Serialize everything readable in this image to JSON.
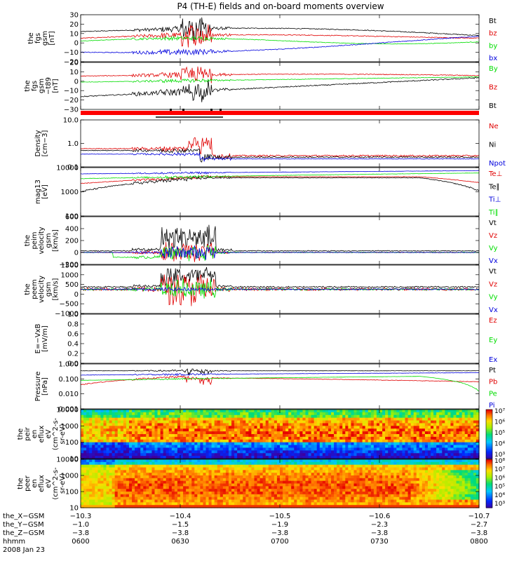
{
  "title": "P4 (TH-E) fields and on-board moments overview",
  "colors": {
    "black": "#000000",
    "red": "#e00000",
    "green": "#00dd00",
    "blue": "#0000dd",
    "bar_red": "#ff0000"
  },
  "chart_data": [
    {
      "type": "line",
      "name": "fgs-gsm",
      "ylabel": [
        "the",
        "fgs",
        "gsm",
        "[nT]"
      ],
      "ylim": [
        -20,
        30
      ],
      "yticks": [
        "30",
        "20",
        "10",
        "0",
        "−10",
        "−20"
      ],
      "legend": [
        {
          "label": "Bt",
          "color": "#000000"
        },
        {
          "label": "bz",
          "color": "#e00000"
        },
        {
          "label": "by",
          "color": "#00dd00"
        },
        {
          "label": "bx",
          "color": "#0000dd"
        }
      ]
    },
    {
      "type": "line",
      "name": "fgs-gsm-diff",
      "ylabel": [
        "the",
        "fgs",
        "gsm",
        "−t89",
        "[nT]"
      ],
      "ylim": [
        -35,
        20
      ],
      "yticks": [
        "20",
        "10",
        "0",
        "−10",
        "−20",
        "−30"
      ],
      "legend": [
        {
          "label": "By",
          "color": "#00dd00"
        },
        {
          "label": "Bz",
          "color": "#e00000"
        },
        {
          "label": "Bt",
          "color": "#000000"
        }
      ]
    },
    {
      "type": "line",
      "name": "density",
      "ylabel": [
        "Density",
        "[cm−3]"
      ],
      "ylim": [
        0.1,
        10
      ],
      "log": true,
      "yticks": [
        "10.0",
        "1.0",
        "0.1"
      ],
      "legend": [
        {
          "label": "Ne",
          "color": "#e00000"
        },
        {
          "label": "Ni",
          "color": "#000000"
        },
        {
          "label": "Npot",
          "color": "#0000dd"
        }
      ]
    },
    {
      "type": "line",
      "name": "temperature",
      "ylabel": [
        "mag13",
        "[eV]"
      ],
      "ylim": [
        100,
        10000
      ],
      "log": true,
      "yticks": [
        "10000",
        "1000",
        "100"
      ],
      "legend": [
        {
          "label": "Te⊥",
          "color": "#e00000"
        },
        {
          "label": "Te∥",
          "color": "#000000"
        },
        {
          "label": "Ti⊥",
          "color": "#0000dd"
        },
        {
          "label": "Ti∥",
          "color": "#00dd00"
        }
      ]
    },
    {
      "type": "line",
      "name": "peim-velocity",
      "ylabel": [
        "the",
        "peim",
        "velocity",
        "gsm",
        "[km/s]"
      ],
      "ylim": [
        -200,
        600
      ],
      "yticks": [
        "600",
        "400",
        "200",
        "0",
        "−200"
      ],
      "legend": [
        {
          "label": "Vt",
          "color": "#000000"
        },
        {
          "label": "Vz",
          "color": "#e00000"
        },
        {
          "label": "Vy",
          "color": "#00dd00"
        },
        {
          "label": "Vx",
          "color": "#0000dd"
        }
      ]
    },
    {
      "type": "line",
      "name": "peem-velocity",
      "ylabel": [
        "the",
        "peem",
        "velocity",
        "gsm",
        "[km/s]"
      ],
      "ylim": [
        -1500,
        1500
      ],
      "yticks": [
        "1500",
        "1000",
        "500",
        "0",
        "−500",
        "−1000"
      ],
      "legend": [
        {
          "label": "Vt",
          "color": "#000000"
        },
        {
          "label": "Vz",
          "color": "#e00000"
        },
        {
          "label": "Vy",
          "color": "#00dd00"
        },
        {
          "label": "Vx",
          "color": "#0000dd"
        }
      ]
    },
    {
      "type": "line",
      "name": "efield",
      "ylabel": [
        "E=−VxB",
        "[mV/m]"
      ],
      "ylim": [
        0,
        1
      ],
      "yticks": [
        "1.0",
        "0.8",
        "0.6",
        "0.4",
        "0.2",
        "0.0"
      ],
      "legend": [
        {
          "label": "Ez",
          "color": "#e00000"
        },
        {
          "label": "Ey",
          "color": "#00dd00"
        },
        {
          "label": "Ex",
          "color": "#0000dd"
        }
      ]
    },
    {
      "type": "line",
      "name": "pressure",
      "ylabel": [
        "Pressure",
        "[nPa]"
      ],
      "ylim": [
        0.001,
        1
      ],
      "log": true,
      "yticks": [
        "1.000",
        "0.100",
        "0.010",
        "0.001"
      ],
      "legend": [
        {
          "label": "Pt",
          "color": "#000000"
        },
        {
          "label": "Pb",
          "color": "#e00000"
        },
        {
          "label": "Pe",
          "color": "#00dd00"
        },
        {
          "label": "Pi",
          "color": "#0000dd"
        }
      ]
    },
    {
      "type": "heatmap",
      "name": "peir-eflux",
      "ylabel": [
        "the",
        "peir",
        "en",
        "eflux",
        "eV",
        "(cm^2-s-",
        "sr-eV)"
      ],
      "ylim": [
        10,
        20000
      ],
      "log": true,
      "yticks": [
        "10000",
        "1000",
        "100",
        "10"
      ],
      "colorbar": [
        "10⁷",
        "10⁶",
        "10⁵",
        "10⁴",
        "10³"
      ]
    },
    {
      "type": "heatmap",
      "name": "peer-eflux",
      "ylabel": [
        "the",
        "peer",
        "en",
        "eflux",
        "eV",
        "(cm^2-s-",
        "sr-eV)"
      ],
      "ylim": [
        10,
        20000
      ],
      "log": true,
      "yticks": [
        "10000",
        "1000",
        "100",
        "10"
      ],
      "colorbar": [
        "10⁸",
        "10⁷",
        "10⁶",
        "10⁵",
        "10⁴",
        "10³"
      ]
    }
  ],
  "xaxis": {
    "rows": [
      {
        "label": "the_X−GSM",
        "values": [
          "−10.3",
          "−10.4",
          "−10.5",
          "−10.6",
          "−10.7"
        ]
      },
      {
        "label": "the_Y−GSM",
        "values": [
          "−1.0",
          "−1.5",
          "−1.9",
          "−2.3",
          "−2.7"
        ]
      },
      {
        "label": "the_Z−GSM",
        "values": [
          "−3.8",
          "−3.8",
          "−3.8",
          "−3.8",
          "−3.8"
        ]
      },
      {
        "label": "hhmm",
        "values": [
          "0600",
          "0630",
          "0700",
          "0730",
          "0800"
        ]
      }
    ],
    "date": "2008 Jan 23"
  }
}
